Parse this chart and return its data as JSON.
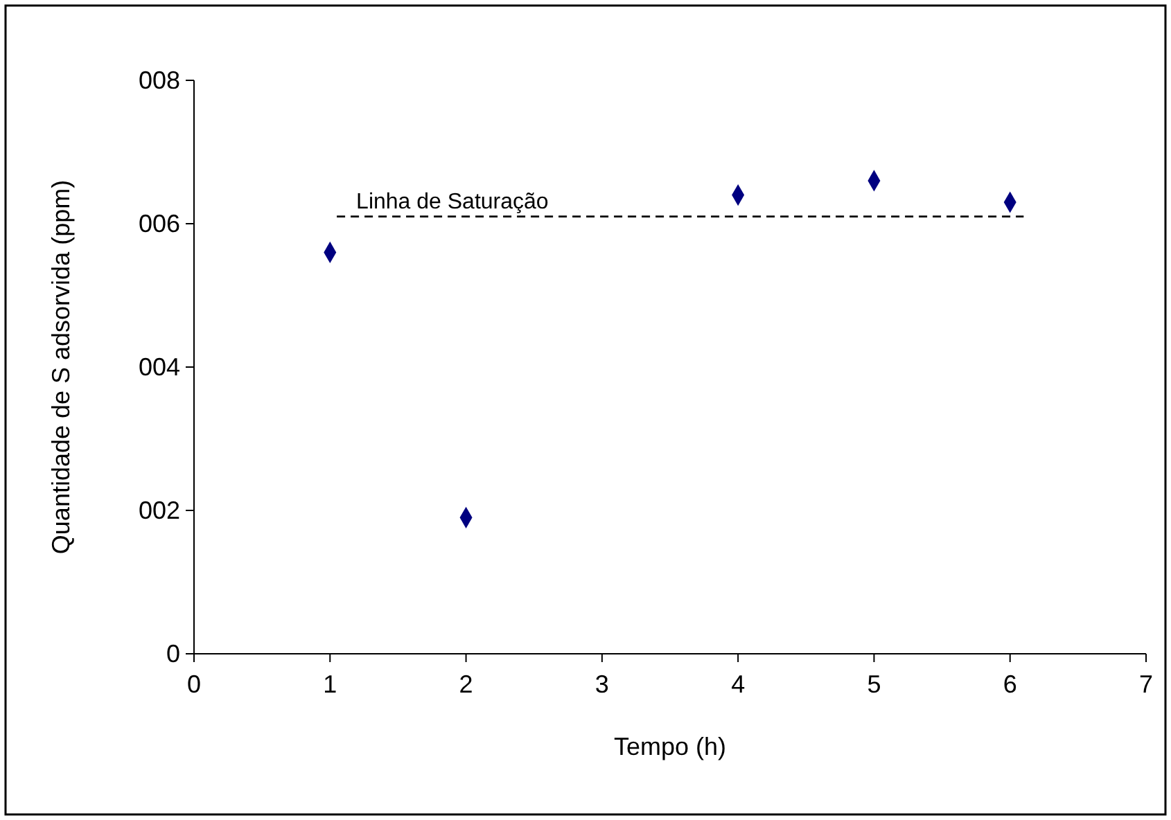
{
  "chart_data": {
    "type": "scatter",
    "xlabel": "Tempo (h)",
    "ylabel": "Quantidade de S adsorvida (ppm)",
    "xlim": [
      0,
      7
    ],
    "xticks": [
      0,
      1,
      2,
      3,
      4,
      5,
      6,
      7
    ],
    "ylim": [
      0,
      8
    ],
    "yticks": [
      0,
      {
        "value": 2,
        "label": "002"
      },
      {
        "value": 4,
        "label": "004"
      },
      {
        "value": 6,
        "label": "006"
      },
      {
        "value": 8,
        "label": "008"
      }
    ],
    "grid": false,
    "marker": "diamond",
    "series": [
      {
        "color": "#000080",
        "x": [
          1,
          2,
          4,
          5,
          6
        ],
        "values": [
          5.6,
          1.9,
          6.4,
          6.6,
          6.3
        ]
      },
      {
        "type": "line",
        "name": "Linha de Saturação",
        "color": "#000000",
        "line_style": "dashed",
        "marker": "none",
        "x": [
          1.05,
          6.1
        ],
        "values": [
          6.1,
          6.1
        ]
      }
    ]
  }
}
